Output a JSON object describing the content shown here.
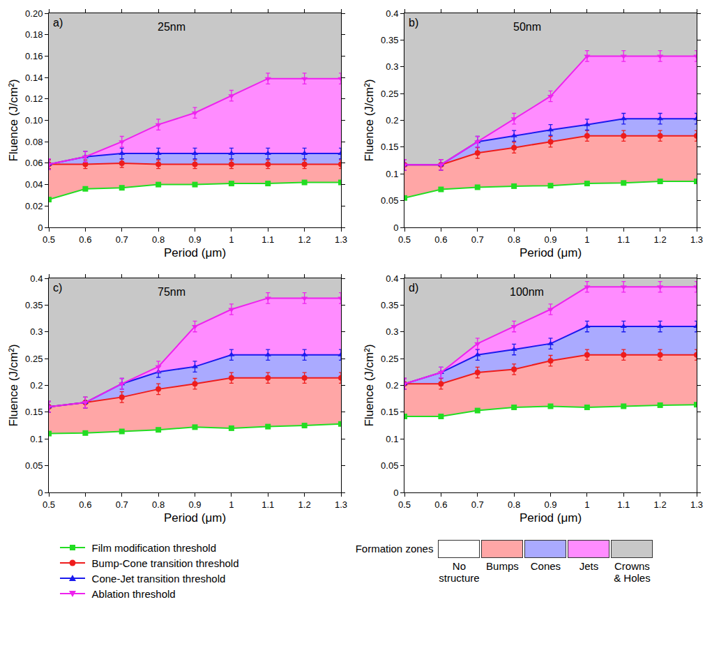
{
  "chart_data": [
    {
      "type": "line",
      "letter": "a)",
      "title": "25nm",
      "xlabel": "Period (μm)",
      "ylabel": "Fluence (J/cm²)",
      "xlim": [
        0.5,
        1.3
      ],
      "xticks": [
        0.5,
        0.6,
        0.7,
        0.8,
        0.9,
        1.0,
        1.1,
        1.2,
        1.3
      ],
      "ylim": [
        0,
        0.2
      ],
      "yticks": [
        0,
        0.02,
        0.04,
        0.06,
        0.08,
        {
          "value": 0.1,
          "label": "0.10"
        },
        0.12,
        0.14,
        0.16,
        0.18,
        {
          "value": 0.2,
          "label": "0.20"
        }
      ],
      "x": [
        0.5,
        0.6,
        0.7,
        0.8,
        0.9,
        1.0,
        1.1,
        1.2,
        1.3
      ],
      "series": [
        {
          "name": "Film modification threshold",
          "color": "#22dd22",
          "marker": "square",
          "values": [
            0.026,
            0.036,
            0.037,
            0.04,
            0.04,
            0.041,
            0.041,
            0.042,
            0.042
          ]
        },
        {
          "name": "Bump-Cone transition threshold",
          "color": "#ee1c1c",
          "marker": "circle",
          "error": 0.004,
          "values": [
            0.059,
            0.059,
            0.06,
            0.059,
            0.059,
            0.059,
            0.059,
            0.059,
            0.059
          ]
        },
        {
          "name": "Cone-Jet transition threshold",
          "color": "#1a1aee",
          "marker": "triangle-up",
          "error": 0.005,
          "values": [
            0.059,
            0.066,
            0.069,
            0.069,
            0.069,
            0.069,
            0.069,
            0.069,
            0.069
          ]
        },
        {
          "name": "Ablation threshold",
          "color": "#ee22ee",
          "marker": "triangle-down",
          "error": 0.005,
          "values": [
            0.059,
            0.066,
            0.08,
            0.096,
            0.107,
            0.123,
            0.139,
            0.139,
            0.139
          ]
        }
      ]
    },
    {
      "type": "line",
      "letter": "b)",
      "title": "50nm",
      "xlabel": "Period (μm)",
      "ylabel": "Fluence (J/cm²)",
      "xlim": [
        0.5,
        1.3
      ],
      "xticks": [
        0.5,
        0.6,
        0.7,
        0.8,
        0.9,
        1.0,
        1.1,
        1.2,
        1.3
      ],
      "ylim": [
        0,
        0.4
      ],
      "yticks": [
        0,
        0.05,
        0.1,
        0.15,
        0.2,
        0.25,
        0.3,
        0.35,
        0.4
      ],
      "x": [
        0.5,
        0.6,
        0.7,
        0.8,
        0.9,
        1.0,
        1.1,
        1.2,
        1.3
      ],
      "series": [
        {
          "name": "Film modification threshold",
          "color": "#22dd22",
          "marker": "square",
          "values": [
            0.055,
            0.071,
            0.075,
            0.077,
            0.078,
            0.082,
            0.083,
            0.086,
            0.086
          ]
        },
        {
          "name": "Bump-Cone transition threshold",
          "color": "#ee1c1c",
          "marker": "circle",
          "error": 0.01,
          "values": [
            0.117,
            0.117,
            0.139,
            0.149,
            0.16,
            0.171,
            0.171,
            0.171,
            0.171
          ]
        },
        {
          "name": "Cone-Jet transition threshold",
          "color": "#1a1aee",
          "marker": "triangle-up",
          "error": 0.01,
          "values": [
            0.117,
            0.117,
            0.16,
            0.171,
            0.182,
            0.192,
            0.203,
            0.203,
            0.203
          ]
        },
        {
          "name": "Ablation threshold",
          "color": "#ee22ee",
          "marker": "triangle-down",
          "error": 0.01,
          "values": [
            0.117,
            0.117,
            0.16,
            0.203,
            0.245,
            0.32,
            0.32,
            0.32,
            0.32
          ]
        }
      ]
    },
    {
      "type": "line",
      "letter": "c)",
      "title": "75nm",
      "xlabel": "Period (μm)",
      "ylabel": "Fluence (J/cm²)",
      "xlim": [
        0.5,
        1.3
      ],
      "xticks": [
        0.5,
        0.6,
        0.7,
        0.8,
        0.9,
        1.0,
        1.1,
        1.2,
        1.3
      ],
      "ylim": [
        0,
        0.4
      ],
      "yticks": [
        0,
        0.05,
        0.1,
        0.15,
        0.2,
        0.25,
        0.3,
        0.35,
        0.4
      ],
      "x": [
        0.5,
        0.6,
        0.7,
        0.8,
        0.9,
        1.0,
        1.1,
        1.2,
        1.3
      ],
      "series": [
        {
          "name": "Film modification threshold",
          "color": "#22dd22",
          "marker": "square",
          "values": [
            0.11,
            0.111,
            0.114,
            0.117,
            0.122,
            0.12,
            0.123,
            0.125,
            0.128
          ]
        },
        {
          "name": "Bump-Cone transition threshold",
          "color": "#ee1c1c",
          "marker": "circle",
          "error": 0.01,
          "values": [
            0.16,
            0.168,
            0.178,
            0.193,
            0.203,
            0.214,
            0.214,
            0.214,
            0.214
          ]
        },
        {
          "name": "Cone-Jet transition threshold",
          "color": "#1a1aee",
          "marker": "triangle-up",
          "error": 0.01,
          "values": [
            0.16,
            0.168,
            0.203,
            0.225,
            0.235,
            0.257,
            0.257,
            0.257,
            0.257
          ]
        },
        {
          "name": "Ablation threshold",
          "color": "#ee22ee",
          "marker": "triangle-down",
          "error": 0.01,
          "values": [
            0.16,
            0.168,
            0.203,
            0.235,
            0.31,
            0.342,
            0.363,
            0.363,
            0.363
          ]
        }
      ]
    },
    {
      "type": "line",
      "letter": "d)",
      "title": "100nm",
      "xlabel": "Period (μm)",
      "ylabel": "Fluence (J/cm²)",
      "xlim": [
        0.5,
        1.3
      ],
      "xticks": [
        0.5,
        0.6,
        0.7,
        0.8,
        0.9,
        1.0,
        1.1,
        1.2,
        1.3
      ],
      "ylim": [
        0,
        0.4
      ],
      "yticks": [
        0,
        0.05,
        0.1,
        0.15,
        0.2,
        0.25,
        0.3,
        0.35,
        0.4
      ],
      "x": [
        0.5,
        0.6,
        0.7,
        0.8,
        0.9,
        1.0,
        1.1,
        1.2,
        1.3
      ],
      "series": [
        {
          "name": "Film modification threshold",
          "color": "#22dd22",
          "marker": "square",
          "values": [
            0.142,
            0.142,
            0.153,
            0.159,
            0.161,
            0.159,
            0.161,
            0.163,
            0.164
          ]
        },
        {
          "name": "Bump-Cone transition threshold",
          "color": "#ee1c1c",
          "marker": "circle",
          "error": 0.01,
          "values": [
            0.203,
            0.203,
            0.224,
            0.23,
            0.246,
            0.257,
            0.257,
            0.257,
            0.257
          ]
        },
        {
          "name": "Cone-Jet transition threshold",
          "color": "#1a1aee",
          "marker": "triangle-up",
          "error": 0.01,
          "values": [
            0.203,
            0.224,
            0.257,
            0.267,
            0.278,
            0.31,
            0.31,
            0.31,
            0.31
          ]
        },
        {
          "name": "Ablation threshold",
          "color": "#ee22ee",
          "marker": "triangle-down",
          "error": 0.01,
          "values": [
            0.203,
            0.224,
            0.278,
            0.31,
            0.342,
            0.384,
            0.384,
            0.384,
            0.384
          ]
        }
      ]
    }
  ],
  "zones": {
    "title": "Formation zones",
    "names": [
      "No structure",
      "Bumps",
      "Cones",
      "Jets",
      "Crowns & Holes"
    ],
    "colors": [
      "#ffffff",
      "#ffa6a6",
      "#aaaaff",
      "#ff8cff",
      "#c8c8c8"
    ]
  },
  "legend": "bottom"
}
